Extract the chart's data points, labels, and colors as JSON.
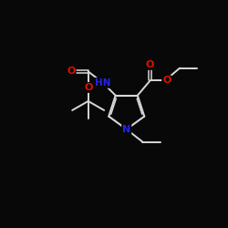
{
  "bg_color": "#080808",
  "bond_color": "#d8d8d8",
  "atom_colors": {
    "O": "#dd1100",
    "N": "#2222ee"
  },
  "figsize": [
    2.5,
    2.5
  ],
  "dpi": 100
}
